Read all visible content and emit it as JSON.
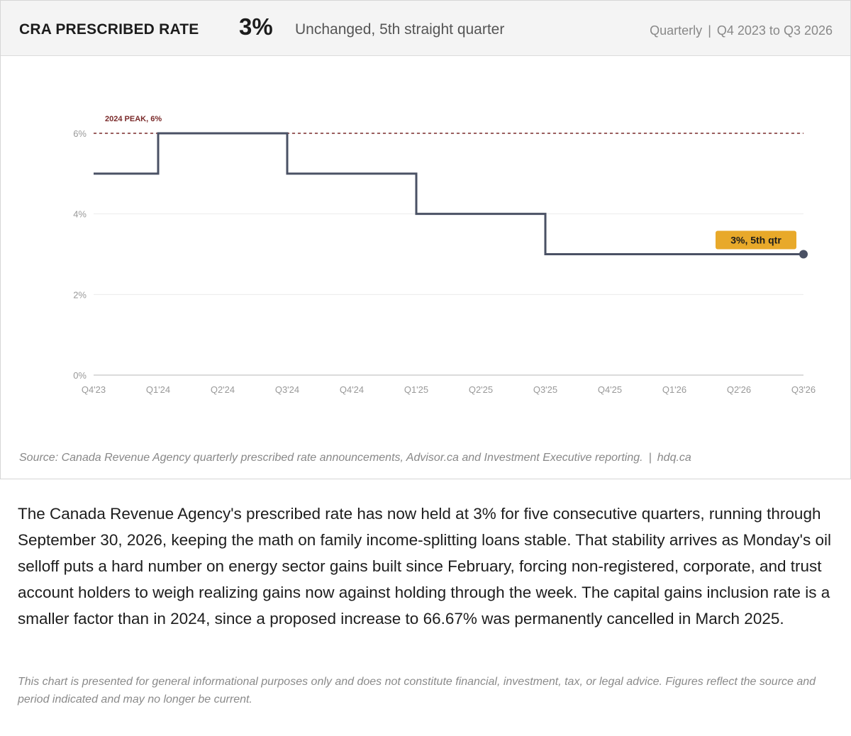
{
  "header": {
    "title": "CRA PRESCRIBED RATE",
    "value": "3%",
    "subtitle": "Unchanged, 5th straight quarter",
    "frequency": "Quarterly",
    "separator": "|",
    "period": "Q4 2023 to Q3 2026"
  },
  "chart_data": {
    "type": "line",
    "step": true,
    "categories": [
      "Q4'23",
      "Q1'24",
      "Q2'24",
      "Q3'24",
      "Q4'24",
      "Q1'25",
      "Q2'25",
      "Q3'25",
      "Q4'25",
      "Q1'26",
      "Q2'26",
      "Q3'26"
    ],
    "series": [
      {
        "values": [
          5,
          6,
          6,
          5,
          5,
          4,
          4,
          3,
          3,
          3,
          3,
          3
        ],
        "color": "#4a5164"
      }
    ],
    "ylim": [
      0,
      6
    ],
    "yticks": [
      0,
      2,
      4,
      6
    ],
    "ytick_labels": [
      "0%",
      "2%",
      "4%",
      "6%"
    ],
    "grid": true,
    "reference_line": {
      "value": 6,
      "label": "2024 PEAK, 6%",
      "color": "#7a2a2a"
    },
    "end_badge": {
      "label": "3%, 5th qtr",
      "color": "#e8a92a"
    }
  },
  "source": {
    "text": "Source: Canada Revenue Agency quarterly prescribed rate announcements, Advisor.ca and Investment Executive reporting.",
    "separator": "|",
    "site": "hdq.ca"
  },
  "article": {
    "paragraph": "The Canada Revenue Agency's prescribed rate has now held at 3% for five consecutive quarters, running through September 30, 2026, keeping the math on family income-splitting loans stable. That stability arrives as Monday's oil selloff puts a hard number on energy sector gains built since February, forcing non-registered, corporate, and trust account holders to weigh realizing gains now against holding through the week. The capital gains inclusion rate is a smaller factor than in 2024, since a proposed increase to 66.67% was permanently cancelled in March 2025."
  },
  "disclaimer": "This chart is presented for general informational purposes only and does not constitute financial, investment, tax, or legal advice. Figures reflect the source and period indicated and may no longer be current."
}
